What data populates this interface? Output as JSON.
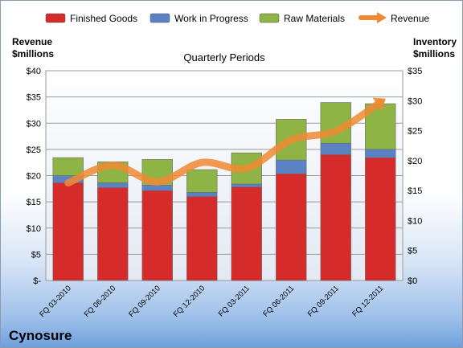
{
  "chart_data": {
    "type": "bar",
    "stacked": true,
    "title": "Quarterly Periods",
    "company": "Cynosure",
    "categories": [
      "FQ 03-2010",
      "FQ 06-2010",
      "FQ 09-2010",
      "FQ 12-2010",
      "FQ 03-2011",
      "FQ 06-2011",
      "FQ 09-2011",
      "FQ 12-2011"
    ],
    "y_left": {
      "label_line1": "Revenue",
      "label_line2": "$millions",
      "range": [
        0,
        40
      ],
      "ticks": [
        "$-",
        "$5",
        "$10",
        "$15",
        "$20",
        "$25",
        "$30",
        "$35",
        "$40"
      ]
    },
    "y_right": {
      "label_line1": "Inventory",
      "label_line2": "$millions",
      "range": [
        0,
        35
      ],
      "ticks": [
        "$0",
        "$5",
        "$10",
        "$15",
        "$20",
        "$25",
        "$30",
        "$35"
      ]
    },
    "series": [
      {
        "name": "Finished Goods",
        "axis": "right",
        "color": "#d52b2b",
        "values": [
          16.3,
          15.5,
          15.0,
          14.0,
          15.6,
          17.8,
          21.0,
          20.5
        ]
      },
      {
        "name": "Work in Progress",
        "axis": "right",
        "color": "#5b82c2",
        "values": [
          1.2,
          0.8,
          0.9,
          0.7,
          0.5,
          2.3,
          1.9,
          1.4
        ]
      },
      {
        "name": "Raw Materials",
        "axis": "right",
        "color": "#8db444",
        "values": [
          3.0,
          3.5,
          4.3,
          3.8,
          5.2,
          6.8,
          6.8,
          7.6
        ]
      },
      {
        "name": "Revenue",
        "axis": "left",
        "type": "line",
        "color": "#f08a32",
        "values": [
          18.6,
          22.0,
          18.8,
          22.5,
          21.4,
          26.8,
          28.5,
          34.0
        ]
      }
    ],
    "legend_position": "top",
    "grid": true
  }
}
